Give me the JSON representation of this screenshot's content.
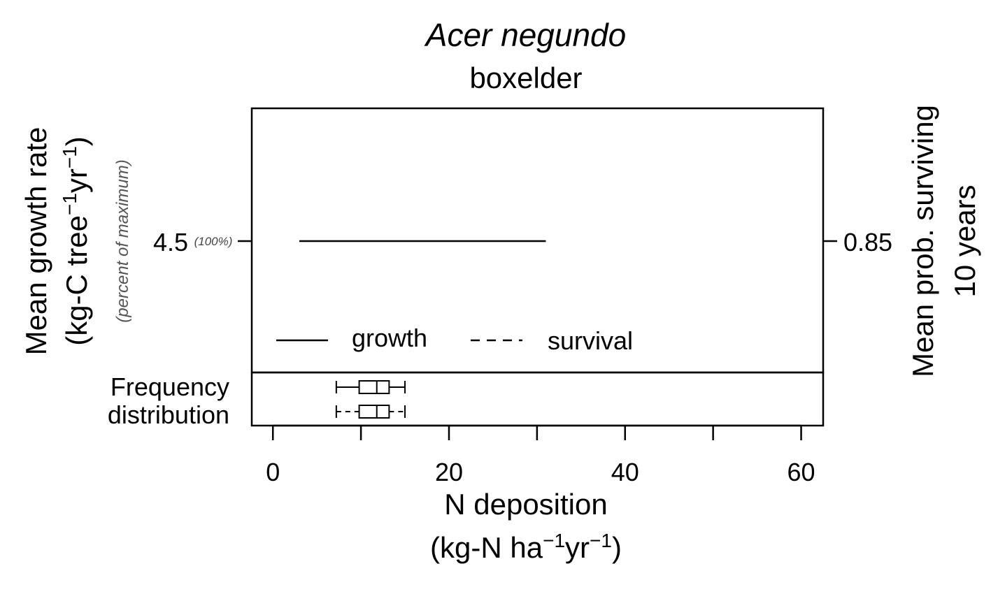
{
  "chart_data": {
    "type": "line",
    "title": "Acer negundo",
    "subtitle": "boxelder",
    "xlabel": "N deposition",
    "xlabel_units": {
      "pre": "(kg-N ha",
      "sup1": "−1",
      "mid": "yr",
      "sup2": "−1",
      "post": ")"
    },
    "xlim": [
      -2.4,
      62.5
    ],
    "xticks": [
      0,
      10,
      20,
      30,
      40,
      50,
      60
    ],
    "xtick_labels": [
      {
        "value": 0,
        "label": "0"
      },
      {
        "value": 20,
        "label": "20"
      },
      {
        "value": 40,
        "label": "40"
      },
      {
        "value": 60,
        "label": "60"
      }
    ],
    "ylabel_left": "Mean growth rate",
    "ylabel_left_units": {
      "pre": "(kg-C tree",
      "sup1": "−1",
      "mid": "yr",
      "sup2": "−1",
      "post": ")"
    },
    "ylabel_left_note": "(percent of maximum)",
    "ylabel_right_line1": "Mean prob. surviving",
    "ylabel_right_line2": "10 years",
    "left_tick": {
      "value": 4.5,
      "label": "4.5",
      "pct": "(100%)"
    },
    "right_tick": {
      "value": 0.85,
      "label": "0.85"
    },
    "series": [
      {
        "name": "growth",
        "style": "solid",
        "x": [
          3,
          31
        ],
        "y": [
          4.5,
          4.5
        ]
      },
      {
        "name": "survival",
        "style": "dashed",
        "x": [],
        "y": []
      }
    ],
    "legend": {
      "position": "bottom-left",
      "growth_label": "growth",
      "survival_label": "survival"
    },
    "freq_label_line1": "Frequency",
    "freq_label_line2": "distribution",
    "boxplots": [
      {
        "style": "solid",
        "whisker_low": 7.2,
        "q1": 9.8,
        "median": 11.8,
        "q3": 13.2,
        "whisker_high": 15.0
      },
      {
        "style": "dashed",
        "whisker_low": 7.2,
        "q1": 9.8,
        "median": 11.8,
        "q3": 13.2,
        "whisker_high": 15.0
      }
    ],
    "grid": false
  }
}
